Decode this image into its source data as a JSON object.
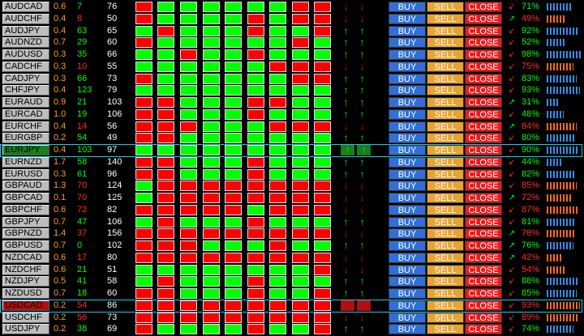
{
  "colors": {
    "up_box": "#00ff00",
    "down_box": "#ff0000",
    "buy": "#2f6fd6",
    "sell": "#e8a331",
    "close": "#ee1a1a",
    "highlight": "#1ec7e6",
    "spread": "#ff9d1e"
  },
  "buttons": {
    "buy": "BUY",
    "sell": "SELL",
    "close": "CLOSE"
  },
  "rows": [
    {
      "pair": "AUDCAD",
      "spread": "0.6",
      "v1": "7",
      "v1c": "g",
      "v2": "76",
      "tf": "rggggggrr",
      "a1": "down",
      "a2": "down",
      "sig": "down",
      "pct": "71%",
      "dir": "up",
      "hl": false
    },
    {
      "pair": "AUDCHF",
      "spread": "0.4",
      "v1": "8",
      "v1c": "r",
      "v2": "50",
      "tf": "rggggrgrr",
      "a1": "down",
      "a2": "down",
      "sig": "up",
      "pct": "49%",
      "dir": "down",
      "hl": false
    },
    {
      "pair": "AUDJPY",
      "spread": "0.4",
      "v1": "63",
      "v1c": "g",
      "v2": "65",
      "tf": "grgggrggr",
      "a1": "up",
      "a2": "up",
      "sig": "down",
      "pct": "92%",
      "dir": "up",
      "hl": false
    },
    {
      "pair": "AUDNZD",
      "spread": "0.7",
      "v1": "29",
      "v1c": "g",
      "v2": "60",
      "tf": "rggggggrg",
      "a1": "up",
      "a2": "up",
      "sig": "down",
      "pct": "52%",
      "dir": "up",
      "hl": false
    },
    {
      "pair": "AUDUSD",
      "spread": "0.3",
      "v1": "35",
      "v1c": "g",
      "v2": "66",
      "tf": "ggrggrggg",
      "a1": "up",
      "a2": "up",
      "sig": "down",
      "pct": "98%",
      "dir": "up",
      "hl": false
    },
    {
      "pair": "CADCHF",
      "spread": "0.3",
      "v1": "10",
      "v1c": "r",
      "v2": "55",
      "tf": "ggggggrrr",
      "a1": "down",
      "a2": "down",
      "sig": "down",
      "pct": "75%",
      "dir": "down",
      "hl": false
    },
    {
      "pair": "CADJPY",
      "spread": "0.3",
      "v1": "66",
      "v1c": "g",
      "v2": "73",
      "tf": "rggggggrr",
      "a1": "up",
      "a2": "up",
      "sig": "down",
      "pct": "83%",
      "dir": "up",
      "hl": false
    },
    {
      "pair": "CHFJPY",
      "spread": "0.4",
      "v1": "123",
      "v1c": "g",
      "v2": "79",
      "tf": "ggggggggg",
      "a1": "up",
      "a2": "up",
      "sig": "down",
      "pct": "93%",
      "dir": "up",
      "hl": false
    },
    {
      "pair": "EURAUD",
      "spread": "0.9",
      "v1": "21",
      "v1c": "g",
      "v2": "103",
      "tf": "rrgggrrgg",
      "a1": "up",
      "a2": "up",
      "sig": "up",
      "pct": "31%",
      "dir": "up",
      "hl": false
    },
    {
      "pair": "EURCAD",
      "spread": "1.0",
      "v1": "19",
      "v1c": "g",
      "v2": "106",
      "tf": "rrgggrggg",
      "a1": "up",
      "a2": "up",
      "sig": "down",
      "pct": "48%",
      "dir": "up",
      "hl": false
    },
    {
      "pair": "EURCHF",
      "spread": "0.4",
      "v1": "14",
      "v1c": "r",
      "v2": "56",
      "tf": "rrrgggrrr",
      "a1": "down",
      "a2": "down",
      "sig": "up",
      "pct": "84%",
      "dir": "down",
      "hl": false
    },
    {
      "pair": "EURGBP",
      "spread": "0.2",
      "v1": "54",
      "v1c": "g",
      "v2": "49",
      "tf": "rrggggggg",
      "a1": "up",
      "a2": "up",
      "sig": "down",
      "pct": "80%",
      "dir": "up",
      "hl": false
    },
    {
      "pair": "EURJPY",
      "spread": "0.4",
      "v1": "103",
      "v1c": "g",
      "v2": "97",
      "tf": "ggggggggg",
      "a1": "up",
      "a2": "up",
      "sig": "down",
      "pct": "90%",
      "dir": "up",
      "hl": true,
      "active": "up"
    },
    {
      "pair": "EURNZD",
      "spread": "1.7",
      "v1": "58",
      "v1c": "g",
      "v2": "140",
      "tf": "rrgggrggg",
      "a1": "up",
      "a2": "up",
      "sig": "down",
      "pct": "44%",
      "dir": "up",
      "hl": false
    },
    {
      "pair": "EURUSD",
      "spread": "0.3",
      "v1": "61",
      "v1c": "g",
      "v2": "96",
      "tf": "rrgggrggg",
      "a1": "up",
      "a2": "up",
      "sig": "down",
      "pct": "82%",
      "dir": "up",
      "hl": false
    },
    {
      "pair": "GBPAUD",
      "spread": "1.3",
      "v1": "70",
      "v1c": "r",
      "v2": "124",
      "tf": "grrrrrrrr",
      "a1": "down",
      "a2": "down",
      "sig": "down",
      "pct": "85%",
      "dir": "down",
      "hl": false
    },
    {
      "pair": "GBPCAD",
      "spread": "0.1",
      "v1": "70",
      "v1c": "r",
      "v2": "125",
      "tf": "grrrrrrrr",
      "a1": "down",
      "a2": "down",
      "sig": "up",
      "pct": "72%",
      "dir": "down",
      "hl": false
    },
    {
      "pair": "GBPCHF",
      "spread": "0.6",
      "v1": "72",
      "v1c": "r",
      "v2": "82",
      "tf": "rrrrrgrrr",
      "a1": "down",
      "a2": "down",
      "sig": "down",
      "pct": "87%",
      "dir": "down",
      "hl": false
    },
    {
      "pair": "GBPJPY",
      "spread": "0.7",
      "v1": "47",
      "v1c": "g",
      "v2": "106",
      "tf": "grgggrggg",
      "a1": "up",
      "a2": "up",
      "sig": "down",
      "pct": "81%",
      "dir": "up",
      "hl": false
    },
    {
      "pair": "GBPNZD",
      "spread": "1.4",
      "v1": "37",
      "v1c": "r",
      "v2": "156",
      "tf": "rrrrrrrrr",
      "a1": "down",
      "a2": "down",
      "sig": "up",
      "pct": "78%",
      "dir": "down",
      "hl": false
    },
    {
      "pair": "GBPUSD",
      "spread": "0.7",
      "v1": "0",
      "v1c": "g",
      "v2": "102",
      "tf": "rrrgggrgg",
      "a1": "up",
      "a2": "up",
      "sig": "up",
      "pct": "76%",
      "dir": "up",
      "hl": false
    },
    {
      "pair": "NZDCAD",
      "spread": "0.6",
      "v1": "17",
      "v1c": "r",
      "v2": "80",
      "tf": "rrrrrrrrr",
      "a1": "down",
      "a2": "down",
      "sig": "up",
      "pct": "42%",
      "dir": "down",
      "hl": false
    },
    {
      "pair": "NZDCHF",
      "spread": "0.6",
      "v1": "21",
      "v1c": "g",
      "v2": "51",
      "tf": "ggggggggr",
      "a1": "down",
      "a2": "down",
      "sig": "down",
      "pct": "54%",
      "dir": "down",
      "hl": false
    },
    {
      "pair": "NZDJPY",
      "spread": "0.5",
      "v1": "41",
      "v1c": "g",
      "v2": "58",
      "tf": "grgggrggg",
      "a1": "up",
      "a2": "up",
      "sig": "down",
      "pct": "88%",
      "dir": "up",
      "hl": false
    },
    {
      "pair": "NZDUSD",
      "spread": "0.7",
      "v1": "18",
      "v1c": "g",
      "v2": "60",
      "tf": "rrgggrggr",
      "a1": "up",
      "a2": "up",
      "sig": "down",
      "pct": "85%",
      "dir": "up",
      "hl": false
    },
    {
      "pair": "USDCAD",
      "spread": "0.2",
      "v1": "54",
      "v1c": "r",
      "v2": "86",
      "tf": "rrrrrrrrr",
      "a1": "down",
      "a2": "down",
      "sig": "down",
      "pct": "93%",
      "dir": "down",
      "hl": true,
      "active": "down"
    },
    {
      "pair": "USDCHF",
      "spread": "0.2",
      "v1": "56",
      "v1c": "r",
      "v2": "73",
      "tf": "rrrrrrrrr",
      "a1": "down",
      "a2": "down",
      "sig": "down",
      "pct": "89%",
      "dir": "down",
      "hl": false
    },
    {
      "pair": "USDJPY",
      "spread": "0.2",
      "v1": "38",
      "v1c": "g",
      "v2": "69",
      "tf": "rggggrggr",
      "a1": "up",
      "a2": "up",
      "sig": "down",
      "pct": "74%",
      "dir": "up",
      "hl": false
    }
  ]
}
